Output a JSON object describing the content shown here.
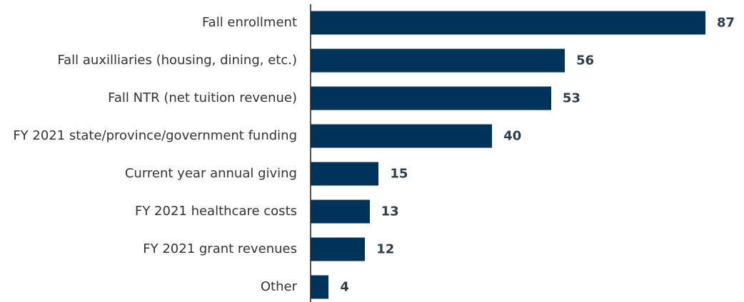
{
  "chart_data": {
    "type": "bar",
    "orientation": "horizontal",
    "categories": [
      "Fall enrollment",
      "Fall auxilliaries (housing, dining, etc.)",
      "Fall NTR (net tuition revenue)",
      "FY 2021 state/province/government funding",
      "Current year annual giving",
      "FY 2021 healthcare costs",
      "FY 2021 grant revenues",
      "Other"
    ],
    "values": [
      87,
      56,
      53,
      40,
      15,
      13,
      12,
      4
    ],
    "color": "#00335a"
  }
}
